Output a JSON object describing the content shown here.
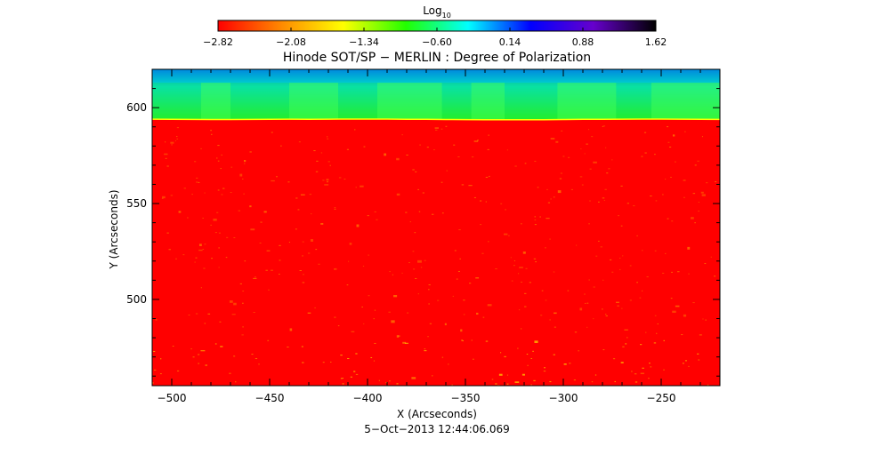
{
  "chart_data": {
    "type": "heatmap",
    "title": "Hinode SOT/SP − MERLIN : Degree of Polarization",
    "xlabel": "X (Arcseconds)",
    "ylabel": "Y (Arcseconds)",
    "timestamp": "5−Oct−2013 12:44:06.069",
    "xlim": [
      -510,
      -220
    ],
    "ylim": [
      455,
      620
    ],
    "x_ticks": [
      {
        "value": -500,
        "label": "−500"
      },
      {
        "value": -450,
        "label": "−450"
      },
      {
        "value": -400,
        "label": "−400"
      },
      {
        "value": -350,
        "label": "−350"
      },
      {
        "value": -300,
        "label": "−300"
      },
      {
        "value": -250,
        "label": "−250"
      }
    ],
    "y_ticks": [
      {
        "value": 500,
        "label": "500"
      },
      {
        "value": 550,
        "label": "550"
      },
      {
        "value": 600,
        "label": "600"
      }
    ],
    "colorbar": {
      "label_main": "Log",
      "label_sub": "10",
      "range": [
        -2.82,
        1.62
      ],
      "ticks": [
        {
          "value": -2.82,
          "label": "−2.82"
        },
        {
          "value": -2.08,
          "label": "−2.08"
        },
        {
          "value": -1.34,
          "label": "−1.34"
        },
        {
          "value": -0.6,
          "label": "−0.60"
        },
        {
          "value": 0.14,
          "label": "0.14"
        },
        {
          "value": 0.88,
          "label": "0.88"
        },
        {
          "value": 1.62,
          "label": "1.62"
        }
      ],
      "colors": [
        "#ff0000",
        "#ff8800",
        "#ffff00",
        "#22ff00",
        "#00ffff",
        "#0000ff",
        "#6600cc",
        "#000000"
      ]
    },
    "regions": {
      "limb_y": 594,
      "disk_value": -2.82,
      "off_limb_value": -1.0,
      "colors": {
        "disk": "#ff0000",
        "disk_speckle": "#ffcc00",
        "off_limb": "#22ee22",
        "off_limb_light": "#44ff44",
        "limb_edge": "#ffff00",
        "upper_cyan": "#00dddd"
      }
    }
  }
}
